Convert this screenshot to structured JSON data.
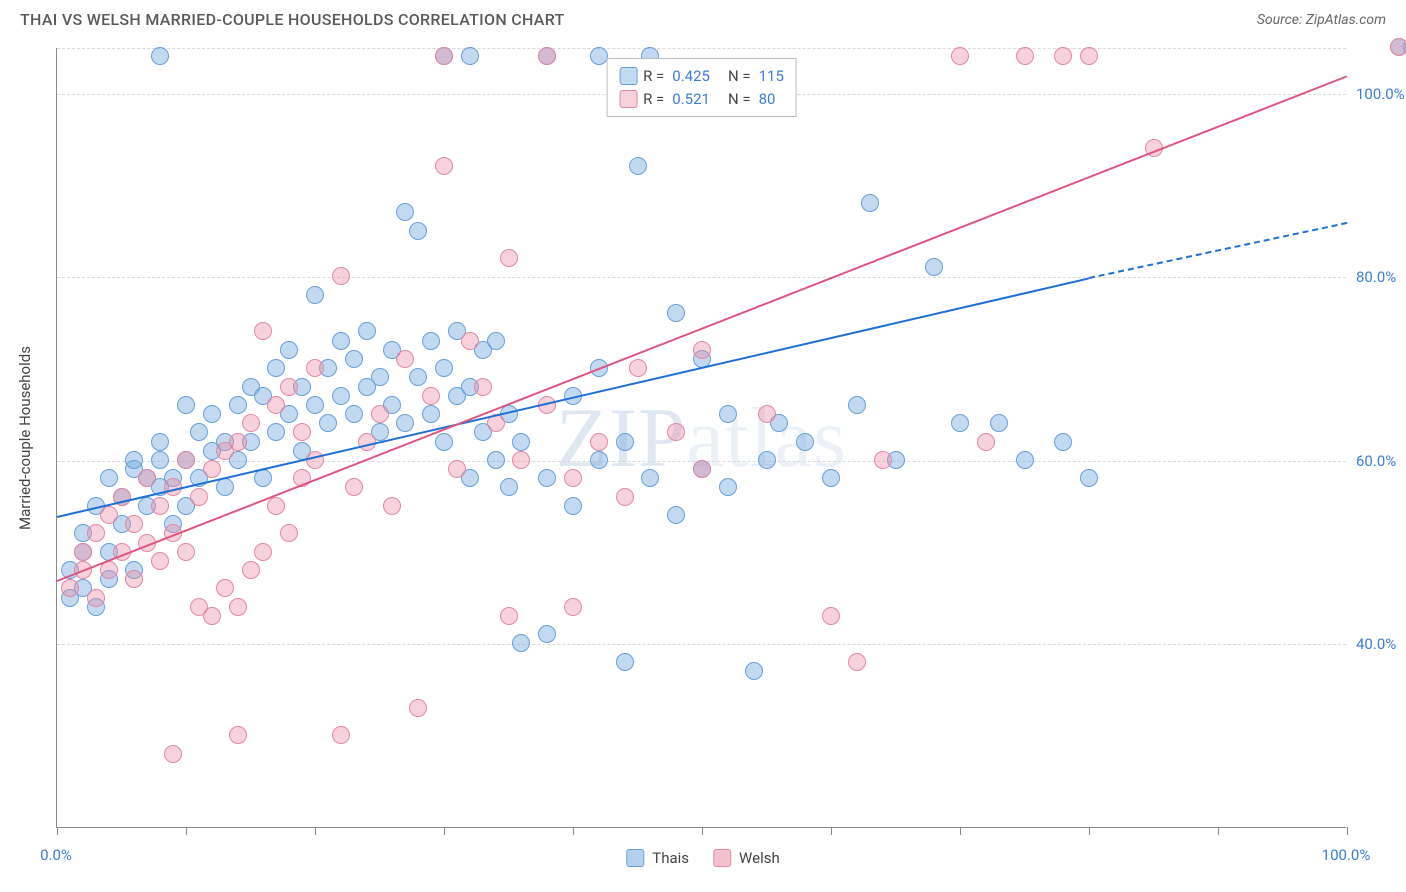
{
  "header": {
    "title": "THAI VS WELSH MARRIED-COUPLE HOUSEHOLDS CORRELATION CHART",
    "source": "Source: ZipAtlas.com"
  },
  "chart": {
    "type": "scatter",
    "ylabel": "Married-couple Households",
    "watermark": "ZIPatlas",
    "background_color": "#ffffff",
    "grid_color": "#d8d8d8",
    "axis_color": "#888888",
    "label_color": "#444444",
    "tick_label_color": "#3b7dd8",
    "title_fontsize": 16,
    "label_fontsize": 15,
    "tick_fontsize": 15,
    "point_radius": 9,
    "point_stroke_width": 1.5,
    "xlim": [
      0,
      100
    ],
    "ylim": [
      20,
      105
    ],
    "x_ticks": [
      0,
      10,
      20,
      30,
      40,
      50,
      60,
      70,
      80,
      90,
      100
    ],
    "x_tick_labels": {
      "0": "0.0%",
      "100": "100.0%"
    },
    "y_gridlines": [
      40,
      60,
      80,
      100,
      105
    ],
    "y_tick_labels": {
      "40": "40.0%",
      "60": "60.0%",
      "80": "80.0%",
      "100": "100.0%"
    },
    "series": [
      {
        "name": "Thais",
        "fill_color": "rgba(120,170,225,0.45)",
        "stroke_color": "#6aa0d8",
        "line_color": "#1f6fd4",
        "R": "0.425",
        "N": "115",
        "trend": {
          "x1": 0,
          "y1": 54,
          "x2": 80,
          "y2": 80,
          "x2_dash": 100,
          "y2_dash": 86
        },
        "points": [
          [
            1,
            45
          ],
          [
            1,
            48
          ],
          [
            2,
            46
          ],
          [
            2,
            50
          ],
          [
            2,
            52
          ],
          [
            3,
            44
          ],
          [
            3,
            55
          ],
          [
            4,
            47
          ],
          [
            4,
            50
          ],
          [
            4,
            58
          ],
          [
            5,
            53
          ],
          [
            5,
            56
          ],
          [
            6,
            48
          ],
          [
            6,
            59
          ],
          [
            6,
            60
          ],
          [
            7,
            55
          ],
          [
            7,
            58
          ],
          [
            8,
            57
          ],
          [
            8,
            60
          ],
          [
            8,
            62
          ],
          [
            9,
            53
          ],
          [
            9,
            58
          ],
          [
            10,
            55
          ],
          [
            10,
            60
          ],
          [
            10,
            66
          ],
          [
            11,
            58
          ],
          [
            11,
            63
          ],
          [
            12,
            61
          ],
          [
            12,
            65
          ],
          [
            13,
            57
          ],
          [
            13,
            62
          ],
          [
            14,
            60
          ],
          [
            14,
            66
          ],
          [
            15,
            62
          ],
          [
            15,
            68
          ],
          [
            16,
            58
          ],
          [
            16,
            67
          ],
          [
            17,
            63
          ],
          [
            17,
            70
          ],
          [
            18,
            65
          ],
          [
            18,
            72
          ],
          [
            19,
            61
          ],
          [
            19,
            68
          ],
          [
            20,
            66
          ],
          [
            20,
            78
          ],
          [
            21,
            64
          ],
          [
            21,
            70
          ],
          [
            22,
            67
          ],
          [
            22,
            73
          ],
          [
            23,
            65
          ],
          [
            23,
            71
          ],
          [
            24,
            68
          ],
          [
            24,
            74
          ],
          [
            25,
            63
          ],
          [
            25,
            69
          ],
          [
            26,
            66
          ],
          [
            26,
            72
          ],
          [
            27,
            64
          ],
          [
            27,
            87
          ],
          [
            28,
            69
          ],
          [
            28,
            85
          ],
          [
            29,
            65
          ],
          [
            29,
            73
          ],
          [
            30,
            62
          ],
          [
            30,
            70
          ],
          [
            31,
            67
          ],
          [
            31,
            74
          ],
          [
            32,
            58
          ],
          [
            32,
            68
          ],
          [
            33,
            63
          ],
          [
            33,
            72
          ],
          [
            34,
            60
          ],
          [
            34,
            73
          ],
          [
            35,
            57
          ],
          [
            35,
            65
          ],
          [
            36,
            40
          ],
          [
            36,
            62
          ],
          [
            38,
            41
          ],
          [
            38,
            58
          ],
          [
            40,
            55
          ],
          [
            40,
            67
          ],
          [
            42,
            60
          ],
          [
            42,
            70
          ],
          [
            44,
            38
          ],
          [
            44,
            62
          ],
          [
            45,
            92
          ],
          [
            46,
            58
          ],
          [
            46,
            104
          ],
          [
            48,
            54
          ],
          [
            48,
            76
          ],
          [
            50,
            59
          ],
          [
            50,
            71
          ],
          [
            52,
            57
          ],
          [
            52,
            65
          ],
          [
            54,
            37
          ],
          [
            55,
            60
          ],
          [
            56,
            64
          ],
          [
            58,
            62
          ],
          [
            60,
            58
          ],
          [
            62,
            66
          ],
          [
            63,
            88
          ],
          [
            65,
            60
          ],
          [
            68,
            81
          ],
          [
            70,
            64
          ],
          [
            73,
            64
          ],
          [
            75,
            60
          ],
          [
            78,
            62
          ],
          [
            80,
            58
          ],
          [
            104,
            105
          ],
          [
            105,
            105
          ],
          [
            38,
            104
          ],
          [
            32,
            104
          ],
          [
            30,
            104
          ],
          [
            8,
            104
          ],
          [
            42,
            104
          ]
        ]
      },
      {
        "name": "Welsh",
        "fill_color": "rgba(235,140,165,0.40)",
        "stroke_color": "#e08aa5",
        "line_color": "#e05580",
        "R": "0.521",
        "N": "80",
        "trend": {
          "x1": 0,
          "y1": 47,
          "x2": 100,
          "y2": 102
        },
        "points": [
          [
            1,
            46
          ],
          [
            2,
            48
          ],
          [
            2,
            50
          ],
          [
            3,
            45
          ],
          [
            3,
            52
          ],
          [
            4,
            48
          ],
          [
            4,
            54
          ],
          [
            5,
            50
          ],
          [
            5,
            56
          ],
          [
            6,
            47
          ],
          [
            6,
            53
          ],
          [
            7,
            51
          ],
          [
            7,
            58
          ],
          [
            8,
            49
          ],
          [
            8,
            55
          ],
          [
            9,
            52
          ],
          [
            9,
            57
          ],
          [
            10,
            50
          ],
          [
            10,
            60
          ],
          [
            11,
            44
          ],
          [
            11,
            56
          ],
          [
            12,
            43
          ],
          [
            12,
            59
          ],
          [
            13,
            46
          ],
          [
            13,
            61
          ],
          [
            14,
            44
          ],
          [
            14,
            62
          ],
          [
            15,
            48
          ],
          [
            15,
            64
          ],
          [
            16,
            50
          ],
          [
            16,
            74
          ],
          [
            17,
            55
          ],
          [
            17,
            66
          ],
          [
            18,
            52
          ],
          [
            18,
            68
          ],
          [
            19,
            58
          ],
          [
            19,
            63
          ],
          [
            20,
            60
          ],
          [
            20,
            70
          ],
          [
            22,
            80
          ],
          [
            23,
            57
          ],
          [
            24,
            62
          ],
          [
            25,
            65
          ],
          [
            26,
            55
          ],
          [
            27,
            71
          ],
          [
            28,
            33
          ],
          [
            29,
            67
          ],
          [
            30,
            92
          ],
          [
            30,
            104
          ],
          [
            31,
            59
          ],
          [
            32,
            73
          ],
          [
            33,
            68
          ],
          [
            34,
            64
          ],
          [
            35,
            43
          ],
          [
            35,
            82
          ],
          [
            36,
            60
          ],
          [
            38,
            66
          ],
          [
            38,
            104
          ],
          [
            40,
            58
          ],
          [
            40,
            44
          ],
          [
            42,
            62
          ],
          [
            44,
            56
          ],
          [
            45,
            70
          ],
          [
            48,
            63
          ],
          [
            50,
            59
          ],
          [
            50,
            72
          ],
          [
            55,
            65
          ],
          [
            60,
            43
          ],
          [
            62,
            38
          ],
          [
            64,
            60
          ],
          [
            70,
            104
          ],
          [
            72,
            62
          ],
          [
            75,
            104
          ],
          [
            78,
            104
          ],
          [
            80,
            104
          ],
          [
            85,
            94
          ],
          [
            9,
            28
          ],
          [
            22,
            30
          ],
          [
            14,
            30
          ],
          [
            104,
            105
          ]
        ]
      }
    ],
    "bottom_legend": [
      {
        "label": "Thais",
        "fill": "rgba(120,170,225,0.55)",
        "stroke": "#6aa0d8"
      },
      {
        "label": "Welsh",
        "fill": "rgba(235,140,165,0.55)",
        "stroke": "#e08aa5"
      }
    ]
  }
}
